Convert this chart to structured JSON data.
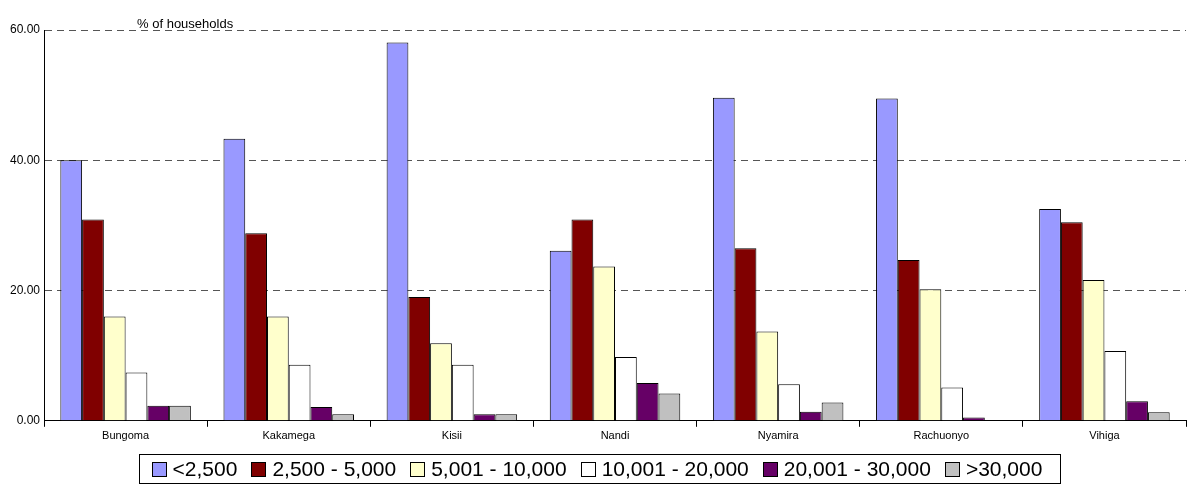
{
  "chart_data": {
    "type": "bar",
    "ylabel": "% of households",
    "categories": [
      "Bungoma",
      "Kakamega",
      "Kisii",
      "Nandi",
      "Nyamira",
      "Rachuonyo",
      "Vihiga"
    ],
    "series": [
      {
        "name": "<2,500",
        "color": "#9999ff",
        "values": [
          40,
          43.3,
          58.1,
          26.1,
          49.6,
          49.5,
          32.5
        ]
      },
      {
        "name": "2,500 - 5,000",
        "color": "#800000",
        "values": [
          30.9,
          28.8,
          19,
          30.9,
          26.5,
          24.7,
          30.5
        ]
      },
      {
        "name": "5,001 - 10,000",
        "color": "#ffffcc",
        "values": [
          16,
          16,
          11.9,
          23.7,
          13.7,
          20.2,
          21.6
        ]
      },
      {
        "name": "10,001 - 20,000",
        "color": "#ffffff",
        "values": [
          7.4,
          8.6,
          8.6,
          9.8,
          5.6,
          5.1,
          10.7
        ]
      },
      {
        "name": "20,001 - 30,000",
        "color": "#660066",
        "values": [
          2.3,
          2.1,
          1,
          5.8,
          1.4,
          0.5,
          3
        ]
      },
      {
        "name": ">30,000",
        "color": "#c0c0c0",
        "values": [
          2.3,
          1,
          1,
          4.2,
          2.8,
          0,
          1.3
        ]
      }
    ],
    "ylim": [
      0,
      60
    ],
    "yticks": [
      {
        "value": 0,
        "label": "0.00"
      },
      {
        "value": 20,
        "label": "20.00"
      },
      {
        "value": 40,
        "label": "40.00"
      },
      {
        "value": 60,
        "label": "60.00"
      }
    ],
    "grid": "y",
    "legend": "bottom"
  }
}
